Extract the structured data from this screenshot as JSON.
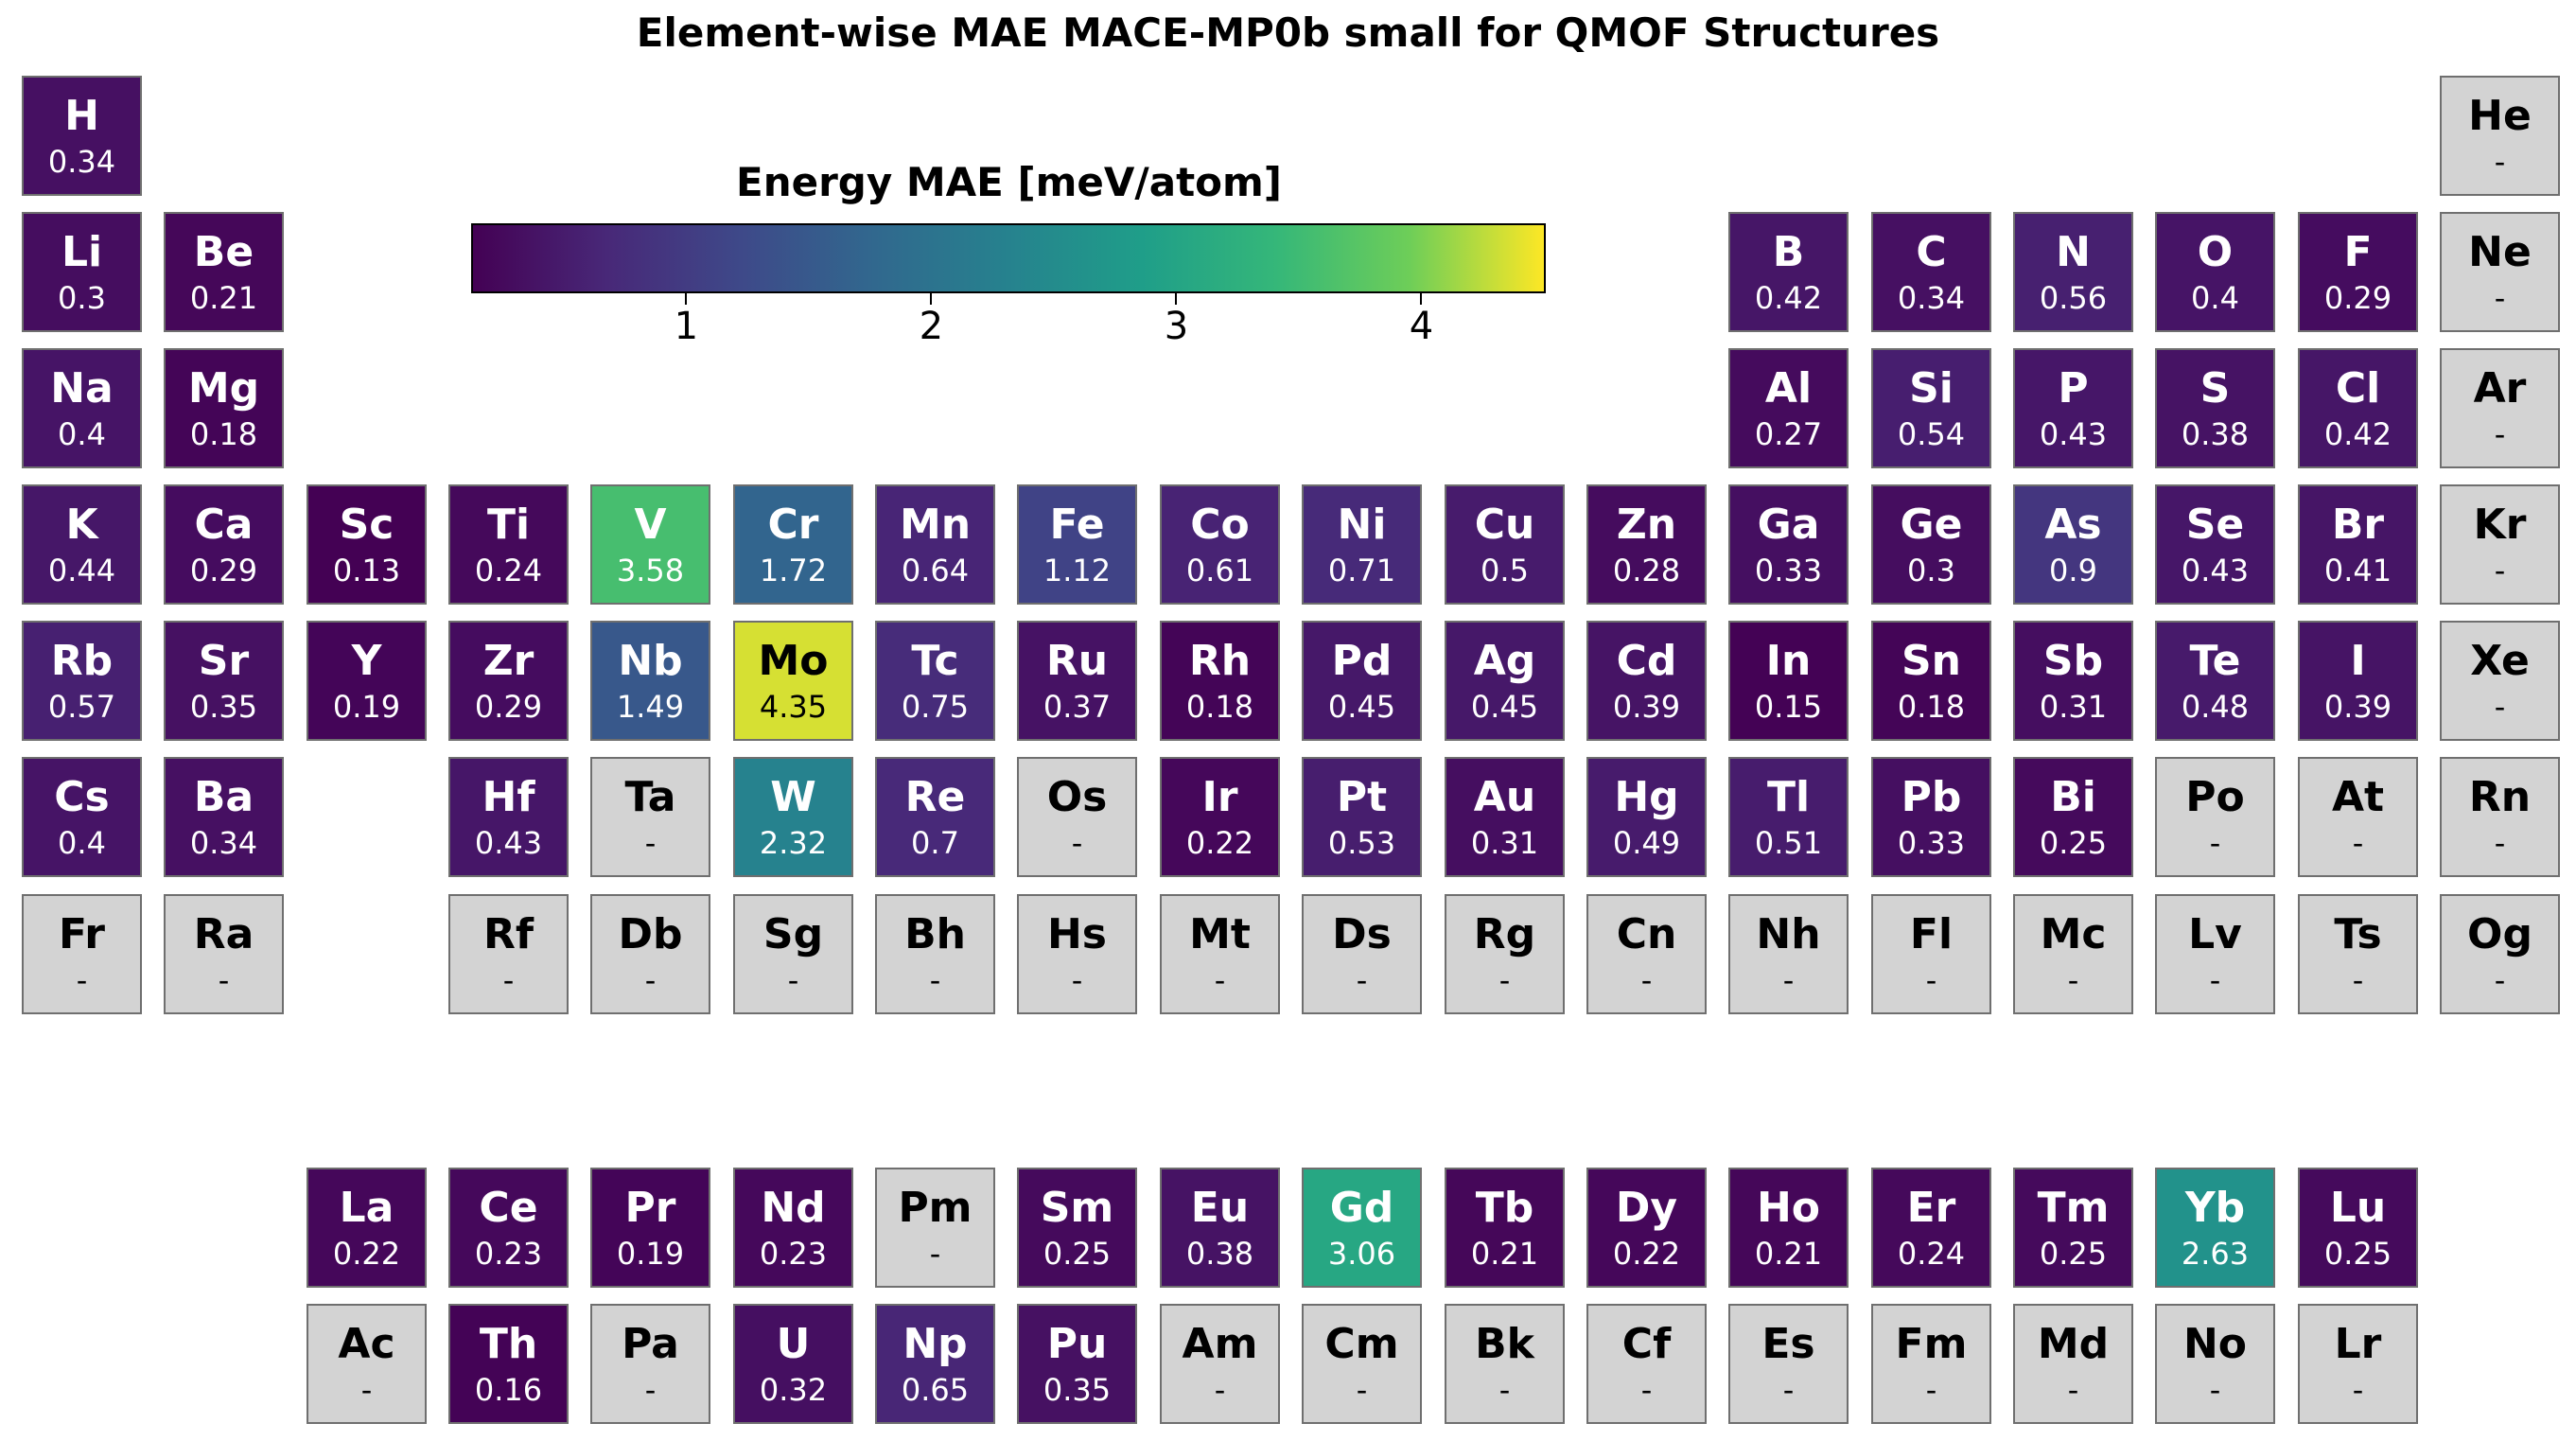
{
  "chart_data": {
    "type": "heatmap",
    "title": "Element-wise MAE MACE-MP0b small for QMOF Structures",
    "colorbar": {
      "label": "Energy MAE [meV/atom]",
      "colormap": "viridis",
      "range": [
        0.13,
        4.5
      ],
      "ticks": [
        1,
        2,
        3,
        4
      ],
      "tick_labels": [
        "1",
        "2",
        "3",
        "4"
      ]
    },
    "missing_color": "#d3d3d3",
    "missing_label": "-",
    "elements": [
      {
        "symbol": "H",
        "value": 0.34,
        "row": 1,
        "col": 1
      },
      {
        "symbol": "He",
        "value": null,
        "row": 1,
        "col": 18
      },
      {
        "symbol": "Li",
        "value": 0.3,
        "row": 2,
        "col": 1
      },
      {
        "symbol": "Be",
        "value": 0.21,
        "row": 2,
        "col": 2
      },
      {
        "symbol": "B",
        "value": 0.42,
        "row": 2,
        "col": 13
      },
      {
        "symbol": "C",
        "value": 0.34,
        "row": 2,
        "col": 14
      },
      {
        "symbol": "N",
        "value": 0.56,
        "row": 2,
        "col": 15
      },
      {
        "symbol": "O",
        "value": 0.4,
        "row": 2,
        "col": 16
      },
      {
        "symbol": "F",
        "value": 0.29,
        "row": 2,
        "col": 17
      },
      {
        "symbol": "Ne",
        "value": null,
        "row": 2,
        "col": 18
      },
      {
        "symbol": "Na",
        "value": 0.4,
        "row": 3,
        "col": 1
      },
      {
        "symbol": "Mg",
        "value": 0.18,
        "row": 3,
        "col": 2
      },
      {
        "symbol": "Al",
        "value": 0.27,
        "row": 3,
        "col": 13
      },
      {
        "symbol": "Si",
        "value": 0.54,
        "row": 3,
        "col": 14
      },
      {
        "symbol": "P",
        "value": 0.43,
        "row": 3,
        "col": 15
      },
      {
        "symbol": "S",
        "value": 0.38,
        "row": 3,
        "col": 16
      },
      {
        "symbol": "Cl",
        "value": 0.42,
        "row": 3,
        "col": 17
      },
      {
        "symbol": "Ar",
        "value": null,
        "row": 3,
        "col": 18
      },
      {
        "symbol": "K",
        "value": 0.44,
        "row": 4,
        "col": 1
      },
      {
        "symbol": "Ca",
        "value": 0.29,
        "row": 4,
        "col": 2
      },
      {
        "symbol": "Sc",
        "value": 0.13,
        "row": 4,
        "col": 3
      },
      {
        "symbol": "Ti",
        "value": 0.24,
        "row": 4,
        "col": 4
      },
      {
        "symbol": "V",
        "value": 3.58,
        "row": 4,
        "col": 5
      },
      {
        "symbol": "Cr",
        "value": 1.72,
        "row": 4,
        "col": 6
      },
      {
        "symbol": "Mn",
        "value": 0.64,
        "row": 4,
        "col": 7
      },
      {
        "symbol": "Fe",
        "value": 1.12,
        "row": 4,
        "col": 8
      },
      {
        "symbol": "Co",
        "value": 0.61,
        "row": 4,
        "col": 9
      },
      {
        "symbol": "Ni",
        "value": 0.71,
        "row": 4,
        "col": 10
      },
      {
        "symbol": "Cu",
        "value": 0.5,
        "row": 4,
        "col": 11
      },
      {
        "symbol": "Zn",
        "value": 0.28,
        "row": 4,
        "col": 12
      },
      {
        "symbol": "Ga",
        "value": 0.33,
        "row": 4,
        "col": 13
      },
      {
        "symbol": "Ge",
        "value": 0.3,
        "row": 4,
        "col": 14
      },
      {
        "symbol": "As",
        "value": 0.9,
        "row": 4,
        "col": 15
      },
      {
        "symbol": "Se",
        "value": 0.43,
        "row": 4,
        "col": 16
      },
      {
        "symbol": "Br",
        "value": 0.41,
        "row": 4,
        "col": 17
      },
      {
        "symbol": "Kr",
        "value": null,
        "row": 4,
        "col": 18
      },
      {
        "symbol": "Rb",
        "value": 0.57,
        "row": 5,
        "col": 1
      },
      {
        "symbol": "Sr",
        "value": 0.35,
        "row": 5,
        "col": 2
      },
      {
        "symbol": "Y",
        "value": 0.19,
        "row": 5,
        "col": 3
      },
      {
        "symbol": "Zr",
        "value": 0.29,
        "row": 5,
        "col": 4
      },
      {
        "symbol": "Nb",
        "value": 1.49,
        "row": 5,
        "col": 5
      },
      {
        "symbol": "Mo",
        "value": 4.35,
        "row": 5,
        "col": 6
      },
      {
        "symbol": "Tc",
        "value": 0.75,
        "row": 5,
        "col": 7
      },
      {
        "symbol": "Ru",
        "value": 0.37,
        "row": 5,
        "col": 8
      },
      {
        "symbol": "Rh",
        "value": 0.18,
        "row": 5,
        "col": 9
      },
      {
        "symbol": "Pd",
        "value": 0.45,
        "row": 5,
        "col": 10
      },
      {
        "symbol": "Ag",
        "value": 0.45,
        "row": 5,
        "col": 11
      },
      {
        "symbol": "Cd",
        "value": 0.39,
        "row": 5,
        "col": 12
      },
      {
        "symbol": "In",
        "value": 0.15,
        "row": 5,
        "col": 13
      },
      {
        "symbol": "Sn",
        "value": 0.18,
        "row": 5,
        "col": 14
      },
      {
        "symbol": "Sb",
        "value": 0.31,
        "row": 5,
        "col": 15
      },
      {
        "symbol": "Te",
        "value": 0.48,
        "row": 5,
        "col": 16
      },
      {
        "symbol": "I",
        "value": 0.39,
        "row": 5,
        "col": 17
      },
      {
        "symbol": "Xe",
        "value": null,
        "row": 5,
        "col": 18
      },
      {
        "symbol": "Cs",
        "value": 0.4,
        "row": 6,
        "col": 1
      },
      {
        "symbol": "Ba",
        "value": 0.34,
        "row": 6,
        "col": 2
      },
      {
        "symbol": "Hf",
        "value": 0.43,
        "row": 6,
        "col": 4
      },
      {
        "symbol": "Ta",
        "value": null,
        "row": 6,
        "col": 5
      },
      {
        "symbol": "W",
        "value": 2.32,
        "row": 6,
        "col": 6
      },
      {
        "symbol": "Re",
        "value": 0.7,
        "row": 6,
        "col": 7
      },
      {
        "symbol": "Os",
        "value": null,
        "row": 6,
        "col": 8
      },
      {
        "symbol": "Ir",
        "value": 0.22,
        "row": 6,
        "col": 9
      },
      {
        "symbol": "Pt",
        "value": 0.53,
        "row": 6,
        "col": 10
      },
      {
        "symbol": "Au",
        "value": 0.31,
        "row": 6,
        "col": 11
      },
      {
        "symbol": "Hg",
        "value": 0.49,
        "row": 6,
        "col": 12
      },
      {
        "symbol": "Tl",
        "value": 0.51,
        "row": 6,
        "col": 13
      },
      {
        "symbol": "Pb",
        "value": 0.33,
        "row": 6,
        "col": 14
      },
      {
        "symbol": "Bi",
        "value": 0.25,
        "row": 6,
        "col": 15
      },
      {
        "symbol": "Po",
        "value": null,
        "row": 6,
        "col": 16
      },
      {
        "symbol": "At",
        "value": null,
        "row": 6,
        "col": 17
      },
      {
        "symbol": "Rn",
        "value": null,
        "row": 6,
        "col": 18
      },
      {
        "symbol": "Fr",
        "value": null,
        "row": 7,
        "col": 1
      },
      {
        "symbol": "Ra",
        "value": null,
        "row": 7,
        "col": 2
      },
      {
        "symbol": "Rf",
        "value": null,
        "row": 7,
        "col": 4
      },
      {
        "symbol": "Db",
        "value": null,
        "row": 7,
        "col": 5
      },
      {
        "symbol": "Sg",
        "value": null,
        "row": 7,
        "col": 6
      },
      {
        "symbol": "Bh",
        "value": null,
        "row": 7,
        "col": 7
      },
      {
        "symbol": "Hs",
        "value": null,
        "row": 7,
        "col": 8
      },
      {
        "symbol": "Mt",
        "value": null,
        "row": 7,
        "col": 9
      },
      {
        "symbol": "Ds",
        "value": null,
        "row": 7,
        "col": 10
      },
      {
        "symbol": "Rg",
        "value": null,
        "row": 7,
        "col": 11
      },
      {
        "symbol": "Cn",
        "value": null,
        "row": 7,
        "col": 12
      },
      {
        "symbol": "Nh",
        "value": null,
        "row": 7,
        "col": 13
      },
      {
        "symbol": "Fl",
        "value": null,
        "row": 7,
        "col": 14
      },
      {
        "symbol": "Mc",
        "value": null,
        "row": 7,
        "col": 15
      },
      {
        "symbol": "Lv",
        "value": null,
        "row": 7,
        "col": 16
      },
      {
        "symbol": "Ts",
        "value": null,
        "row": 7,
        "col": 17
      },
      {
        "symbol": "Og",
        "value": null,
        "row": 7,
        "col": 18
      },
      {
        "symbol": "La",
        "value": 0.22,
        "row": 9,
        "col": 3
      },
      {
        "symbol": "Ce",
        "value": 0.23,
        "row": 9,
        "col": 4
      },
      {
        "symbol": "Pr",
        "value": 0.19,
        "row": 9,
        "col": 5
      },
      {
        "symbol": "Nd",
        "value": 0.23,
        "row": 9,
        "col": 6
      },
      {
        "symbol": "Pm",
        "value": null,
        "row": 9,
        "col": 7
      },
      {
        "symbol": "Sm",
        "value": 0.25,
        "row": 9,
        "col": 8
      },
      {
        "symbol": "Eu",
        "value": 0.38,
        "row": 9,
        "col": 9
      },
      {
        "symbol": "Gd",
        "value": 3.06,
        "row": 9,
        "col": 10
      },
      {
        "symbol": "Tb",
        "value": 0.21,
        "row": 9,
        "col": 11
      },
      {
        "symbol": "Dy",
        "value": 0.22,
        "row": 9,
        "col": 12
      },
      {
        "symbol": "Ho",
        "value": 0.21,
        "row": 9,
        "col": 13
      },
      {
        "symbol": "Er",
        "value": 0.24,
        "row": 9,
        "col": 14
      },
      {
        "symbol": "Tm",
        "value": 0.25,
        "row": 9,
        "col": 15
      },
      {
        "symbol": "Yb",
        "value": 2.63,
        "row": 9,
        "col": 16
      },
      {
        "symbol": "Lu",
        "value": 0.25,
        "row": 9,
        "col": 17
      },
      {
        "symbol": "Ac",
        "value": null,
        "row": 10,
        "col": 3
      },
      {
        "symbol": "Th",
        "value": 0.16,
        "row": 10,
        "col": 4
      },
      {
        "symbol": "Pa",
        "value": null,
        "row": 10,
        "col": 5
      },
      {
        "symbol": "U",
        "value": 0.32,
        "row": 10,
        "col": 6
      },
      {
        "symbol": "Np",
        "value": 0.65,
        "row": 10,
        "col": 7
      },
      {
        "symbol": "Pu",
        "value": 0.35,
        "row": 10,
        "col": 8
      },
      {
        "symbol": "Am",
        "value": null,
        "row": 10,
        "col": 9
      },
      {
        "symbol": "Cm",
        "value": null,
        "row": 10,
        "col": 10
      },
      {
        "symbol": "Bk",
        "value": null,
        "row": 10,
        "col": 11
      },
      {
        "symbol": "Cf",
        "value": null,
        "row": 10,
        "col": 12
      },
      {
        "symbol": "Es",
        "value": null,
        "row": 10,
        "col": 13
      },
      {
        "symbol": "Fm",
        "value": null,
        "row": 10,
        "col": 14
      },
      {
        "symbol": "Md",
        "value": null,
        "row": 10,
        "col": 15
      },
      {
        "symbol": "No",
        "value": null,
        "row": 10,
        "col": 16
      },
      {
        "symbol": "Lr",
        "value": null,
        "row": 10,
        "col": 17
      }
    ]
  }
}
